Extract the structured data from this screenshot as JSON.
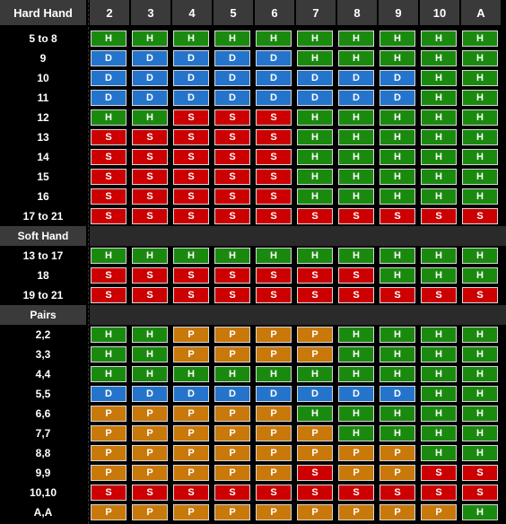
{
  "header": {
    "label": "Hard Hand",
    "columns": [
      "2",
      "3",
      "4",
      "5",
      "6",
      "7",
      "8",
      "9",
      "10",
      "A"
    ]
  },
  "colors": {
    "H": "#1a8a0f",
    "S": "#cc0000",
    "D": "#2474cc",
    "P": "#c9780a"
  },
  "sections": [
    {
      "label": null,
      "rows": [
        {
          "label": "5 to 8",
          "cells": [
            "H",
            "H",
            "H",
            "H",
            "H",
            "H",
            "H",
            "H",
            "H",
            "H"
          ]
        },
        {
          "label": "9",
          "cells": [
            "D",
            "D",
            "D",
            "D",
            "D",
            "H",
            "H",
            "H",
            "H",
            "H"
          ]
        },
        {
          "label": "10",
          "cells": [
            "D",
            "D",
            "D",
            "D",
            "D",
            "D",
            "D",
            "D",
            "H",
            "H"
          ]
        },
        {
          "label": "11",
          "cells": [
            "D",
            "D",
            "D",
            "D",
            "D",
            "D",
            "D",
            "D",
            "H",
            "H"
          ]
        },
        {
          "label": "12",
          "cells": [
            "H",
            "H",
            "S",
            "S",
            "S",
            "H",
            "H",
            "H",
            "H",
            "H"
          ]
        },
        {
          "label": "13",
          "cells": [
            "S",
            "S",
            "S",
            "S",
            "S",
            "H",
            "H",
            "H",
            "H",
            "H"
          ]
        },
        {
          "label": "14",
          "cells": [
            "S",
            "S",
            "S",
            "S",
            "S",
            "H",
            "H",
            "H",
            "H",
            "H"
          ]
        },
        {
          "label": "15",
          "cells": [
            "S",
            "S",
            "S",
            "S",
            "S",
            "H",
            "H",
            "H",
            "H",
            "H"
          ]
        },
        {
          "label": "16",
          "cells": [
            "S",
            "S",
            "S",
            "S",
            "S",
            "H",
            "H",
            "H",
            "H",
            "H"
          ]
        },
        {
          "label": "17 to 21",
          "cells": [
            "S",
            "S",
            "S",
            "S",
            "S",
            "S",
            "S",
            "S",
            "S",
            "S"
          ]
        }
      ]
    },
    {
      "label": "Soft Hand",
      "rows": [
        {
          "label": "13 to 17",
          "cells": [
            "H",
            "H",
            "H",
            "H",
            "H",
            "H",
            "H",
            "H",
            "H",
            "H"
          ]
        },
        {
          "label": "18",
          "cells": [
            "S",
            "S",
            "S",
            "S",
            "S",
            "S",
            "S",
            "H",
            "H",
            "H"
          ]
        },
        {
          "label": "19 to 21",
          "cells": [
            "S",
            "S",
            "S",
            "S",
            "S",
            "S",
            "S",
            "S",
            "S",
            "S"
          ]
        }
      ]
    },
    {
      "label": "Pairs",
      "rows": [
        {
          "label": "2,2",
          "cells": [
            "H",
            "H",
            "P",
            "P",
            "P",
            "P",
            "H",
            "H",
            "H",
            "H"
          ]
        },
        {
          "label": "3,3",
          "cells": [
            "H",
            "H",
            "P",
            "P",
            "P",
            "P",
            "H",
            "H",
            "H",
            "H"
          ]
        },
        {
          "label": "4,4",
          "cells": [
            "H",
            "H",
            "H",
            "H",
            "H",
            "H",
            "H",
            "H",
            "H",
            "H"
          ]
        },
        {
          "label": "5,5",
          "cells": [
            "D",
            "D",
            "D",
            "D",
            "D",
            "D",
            "D",
            "D",
            "H",
            "H"
          ]
        },
        {
          "label": "6,6",
          "cells": [
            "P",
            "P",
            "P",
            "P",
            "P",
            "H",
            "H",
            "H",
            "H",
            "H"
          ]
        },
        {
          "label": "7,7",
          "cells": [
            "P",
            "P",
            "P",
            "P",
            "P",
            "P",
            "H",
            "H",
            "H",
            "H"
          ]
        },
        {
          "label": "8,8",
          "cells": [
            "P",
            "P",
            "P",
            "P",
            "P",
            "P",
            "P",
            "P",
            "H",
            "H"
          ]
        },
        {
          "label": "9,9",
          "cells": [
            "P",
            "P",
            "P",
            "P",
            "P",
            "S",
            "P",
            "P",
            "S",
            "S"
          ]
        },
        {
          "label": "10,10",
          "cells": [
            "S",
            "S",
            "S",
            "S",
            "S",
            "S",
            "S",
            "S",
            "S",
            "S"
          ]
        },
        {
          "label": "A,A",
          "cells": [
            "P",
            "P",
            "P",
            "P",
            "P",
            "P",
            "P",
            "P",
            "P",
            "H"
          ]
        }
      ]
    }
  ]
}
